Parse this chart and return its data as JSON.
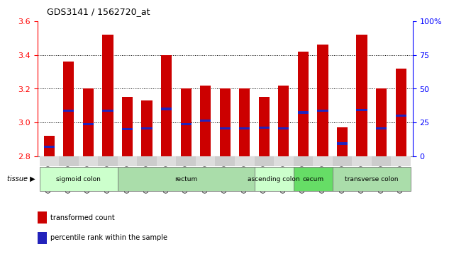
{
  "title": "GDS3141 / 1562720_at",
  "samples": [
    "GSM234909",
    "GSM234910",
    "GSM234916",
    "GSM234926",
    "GSM234911",
    "GSM234914",
    "GSM234915",
    "GSM234923",
    "GSM234924",
    "GSM234925",
    "GSM234927",
    "GSM234913",
    "GSM234918",
    "GSM234919",
    "GSM234912",
    "GSM234917",
    "GSM234920",
    "GSM234921",
    "GSM234922"
  ],
  "bar_values": [
    2.92,
    3.36,
    3.2,
    3.52,
    3.15,
    3.13,
    3.4,
    3.2,
    3.22,
    3.2,
    3.2,
    3.15,
    3.22,
    3.42,
    3.46,
    2.97,
    3.52,
    3.2,
    3.32
  ],
  "blue_dot_values": [
    2.856,
    3.07,
    2.99,
    3.07,
    2.96,
    2.965,
    3.08,
    2.99,
    3.01,
    2.965,
    2.965,
    2.97,
    2.965,
    3.06,
    3.07,
    2.875,
    3.075,
    2.965,
    3.04
  ],
  "ymin": 2.8,
  "ymax": 3.6,
  "yticks": [
    2.8,
    3.0,
    3.2,
    3.4,
    3.6
  ],
  "right_yticks": [
    0,
    25,
    50,
    75,
    100
  ],
  "bar_color": "#CC0000",
  "blue_dot_color": "#2222BB",
  "tissue_groups": [
    {
      "label": "sigmoid colon",
      "start": 0,
      "end": 4,
      "color": "#CCFFCC"
    },
    {
      "label": "rectum",
      "start": 4,
      "end": 11,
      "color": "#AADDAA"
    },
    {
      "label": "ascending colon",
      "start": 11,
      "end": 13,
      "color": "#CCFFCC"
    },
    {
      "label": "cecum",
      "start": 13,
      "end": 15,
      "color": "#66DD66"
    },
    {
      "label": "transverse colon",
      "start": 15,
      "end": 19,
      "color": "#AADDAA"
    }
  ],
  "legend_items": [
    {
      "color": "#CC0000",
      "label": "transformed count"
    },
    {
      "color": "#2222BB",
      "label": "percentile rank within the sample"
    }
  ]
}
